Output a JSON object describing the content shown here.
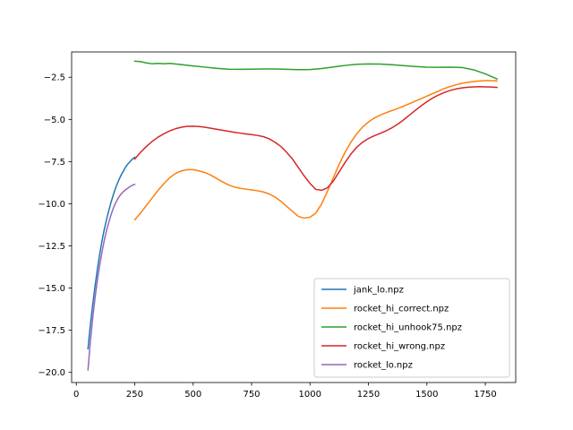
{
  "chart_data": {
    "type": "line",
    "title": "",
    "xlabel": "",
    "ylabel": "",
    "xlim": [
      -20,
      1880
    ],
    "ylim": [
      -20.6,
      -1.0
    ],
    "xticks": [
      0,
      250,
      500,
      750,
      1000,
      1250,
      1500,
      1750
    ],
    "xtick_labels": [
      "0",
      "250",
      "500",
      "750",
      "1000",
      "1250",
      "1500",
      "1750"
    ],
    "yticks": [
      -20.0,
      -17.5,
      -15.0,
      -12.5,
      -10.0,
      -7.5,
      -5.0,
      -2.5
    ],
    "ytick_labels": [
      "−20.0",
      "−17.5",
      "−15.0",
      "−12.5",
      "−10.0",
      "−7.5",
      "−5.0",
      "−2.5"
    ],
    "grid": false,
    "legend_position": "bottom-right",
    "series": [
      {
        "name": "jank_lo.npz",
        "color": "#1f77b4",
        "x": [
          50,
          60,
          70,
          80,
          90,
          100,
          110,
          120,
          130,
          140,
          150,
          160,
          170,
          180,
          190,
          200,
          210,
          220,
          230,
          240,
          250
        ],
        "y": [
          -18.6,
          -17.2,
          -16.0,
          -14.9,
          -13.9,
          -13.0,
          -12.2,
          -11.5,
          -10.9,
          -10.35,
          -9.85,
          -9.4,
          -9.0,
          -8.65,
          -8.35,
          -8.1,
          -7.85,
          -7.65,
          -7.5,
          -7.35,
          -7.25
        ]
      },
      {
        "name": "rocket_hi_correct.npz",
        "color": "#ff7f0e",
        "x": [
          250,
          275,
          300,
          325,
          350,
          375,
          400,
          425,
          450,
          475,
          500,
          525,
          550,
          575,
          600,
          625,
          650,
          675,
          700,
          725,
          750,
          775,
          800,
          825,
          850,
          875,
          900,
          925,
          950,
          975,
          1000,
          1025,
          1050,
          1075,
          1100,
          1125,
          1150,
          1175,
          1200,
          1225,
          1250,
          1275,
          1300,
          1325,
          1350,
          1375,
          1400,
          1425,
          1450,
          1475,
          1500,
          1525,
          1550,
          1575,
          1600,
          1625,
          1650,
          1675,
          1700,
          1725,
          1750,
          1775,
          1800
        ],
        "y": [
          -10.95,
          -10.55,
          -10.1,
          -9.65,
          -9.2,
          -8.8,
          -8.45,
          -8.2,
          -8.05,
          -7.98,
          -7.98,
          -8.05,
          -8.15,
          -8.3,
          -8.5,
          -8.7,
          -8.88,
          -9.0,
          -9.08,
          -9.13,
          -9.18,
          -9.23,
          -9.3,
          -9.42,
          -9.6,
          -9.85,
          -10.15,
          -10.45,
          -10.75,
          -10.85,
          -10.8,
          -10.55,
          -10.0,
          -9.25,
          -8.45,
          -7.65,
          -6.95,
          -6.35,
          -5.85,
          -5.45,
          -5.15,
          -4.92,
          -4.75,
          -4.6,
          -4.48,
          -4.35,
          -4.22,
          -4.07,
          -3.92,
          -3.77,
          -3.62,
          -3.47,
          -3.32,
          -3.17,
          -3.05,
          -2.95,
          -2.86,
          -2.8,
          -2.75,
          -2.72,
          -2.7,
          -2.7,
          -2.72
        ]
      },
      {
        "name": "rocket_hi_unhook75.npz",
        "color": "#2ca02c",
        "x": [
          250,
          275,
          300,
          325,
          350,
          375,
          400,
          450,
          500,
          550,
          600,
          650,
          700,
          750,
          800,
          850,
          900,
          950,
          1000,
          1050,
          1100,
          1150,
          1200,
          1250,
          1300,
          1350,
          1400,
          1450,
          1500,
          1550,
          1600,
          1650,
          1700,
          1750,
          1800
        ],
        "y": [
          -1.55,
          -1.57,
          -1.65,
          -1.7,
          -1.68,
          -1.7,
          -1.68,
          -1.75,
          -1.83,
          -1.9,
          -1.97,
          -2.02,
          -2.03,
          -2.02,
          -2.01,
          -2.01,
          -2.03,
          -2.05,
          -2.04,
          -1.98,
          -1.89,
          -1.8,
          -1.73,
          -1.71,
          -1.72,
          -1.76,
          -1.81,
          -1.86,
          -1.9,
          -1.91,
          -1.9,
          -1.92,
          -2.06,
          -2.3,
          -2.6
        ]
      },
      {
        "name": "rocket_hi_wrong.npz",
        "color": "#d62728",
        "x": [
          250,
          275,
          300,
          325,
          350,
          375,
          400,
          425,
          450,
          475,
          500,
          525,
          550,
          575,
          600,
          625,
          650,
          675,
          700,
          725,
          750,
          775,
          800,
          825,
          850,
          875,
          900,
          925,
          950,
          975,
          1000,
          1025,
          1050,
          1075,
          1100,
          1125,
          1150,
          1175,
          1200,
          1225,
          1250,
          1275,
          1300,
          1325,
          1350,
          1375,
          1400,
          1425,
          1450,
          1475,
          1500,
          1525,
          1550,
          1575,
          1600,
          1625,
          1650,
          1675,
          1700,
          1725,
          1750,
          1775,
          1800
        ],
        "y": [
          -7.35,
          -6.95,
          -6.6,
          -6.3,
          -6.05,
          -5.85,
          -5.68,
          -5.55,
          -5.46,
          -5.41,
          -5.4,
          -5.42,
          -5.46,
          -5.52,
          -5.58,
          -5.64,
          -5.7,
          -5.76,
          -5.81,
          -5.86,
          -5.9,
          -5.95,
          -6.02,
          -6.15,
          -6.35,
          -6.6,
          -6.95,
          -7.35,
          -7.85,
          -8.35,
          -8.8,
          -9.15,
          -9.2,
          -9.05,
          -8.65,
          -8.1,
          -7.55,
          -7.05,
          -6.65,
          -6.35,
          -6.13,
          -5.97,
          -5.83,
          -5.68,
          -5.5,
          -5.28,
          -5.03,
          -4.75,
          -4.47,
          -4.2,
          -3.95,
          -3.73,
          -3.55,
          -3.4,
          -3.28,
          -3.19,
          -3.13,
          -3.09,
          -3.07,
          -3.06,
          -3.07,
          -3.08,
          -3.1
        ]
      },
      {
        "name": "rocket_lo.npz",
        "color": "#9467bd",
        "x": [
          50,
          60,
          70,
          80,
          90,
          100,
          110,
          120,
          130,
          140,
          150,
          160,
          170,
          180,
          190,
          200,
          210,
          220,
          230,
          240,
          250
        ],
        "y": [
          -19.85,
          -18.2,
          -16.8,
          -15.6,
          -14.55,
          -13.65,
          -12.85,
          -12.15,
          -11.55,
          -11.05,
          -10.6,
          -10.2,
          -9.9,
          -9.65,
          -9.45,
          -9.3,
          -9.18,
          -9.08,
          -8.98,
          -8.9,
          -8.85
        ]
      }
    ]
  }
}
